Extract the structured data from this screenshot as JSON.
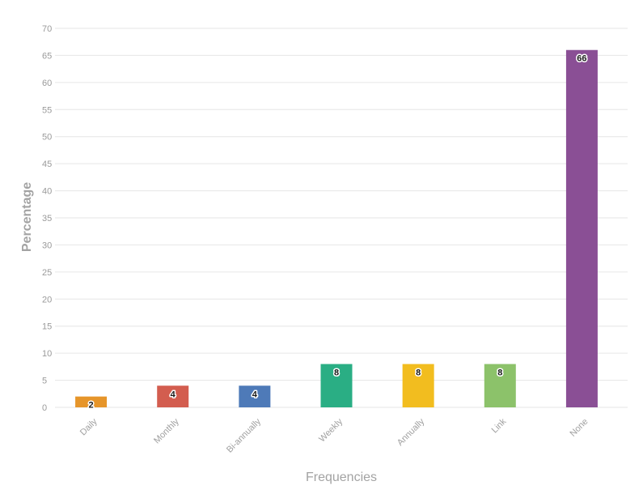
{
  "chart_data": {
    "type": "bar",
    "categories": [
      "Daily",
      "Monthly",
      "Bi-annually",
      "Weekly",
      "Annually",
      "Link",
      "None"
    ],
    "values": [
      2,
      4,
      4,
      8,
      8,
      8,
      66
    ],
    "colors": [
      "#e6952a",
      "#d35d4f",
      "#4e7ab8",
      "#2aae84",
      "#f2bd1f",
      "#8cc26a",
      "#8a4f95"
    ],
    "data_labels": [
      "2",
      "4",
      "4",
      "8",
      "8",
      "8",
      "66"
    ],
    "xlabel": "Frequencies",
    "ylabel": "Percentage",
    "ylim": [
      0,
      70
    ],
    "yticks": [
      0,
      5,
      10,
      15,
      20,
      25,
      30,
      35,
      40,
      45,
      50,
      55,
      60,
      65,
      70
    ],
    "grid": true,
    "legend": "none"
  }
}
